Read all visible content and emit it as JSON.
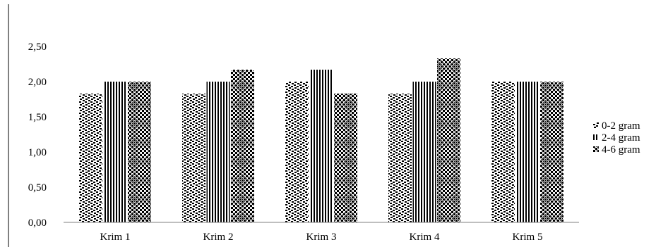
{
  "chart_data": {
    "type": "bar",
    "categories": [
      "Krim 1",
      "Krim 2",
      "Krim 3",
      "Krim 4",
      "Krim 5"
    ],
    "series": [
      {
        "name": "0-2 gram",
        "values": [
          1.83,
          1.83,
          2.0,
          1.83,
          2.0
        ]
      },
      {
        "name": "2-4 gram",
        "values": [
          2.0,
          2.0,
          2.17,
          2.0,
          2.0
        ]
      },
      {
        "name": "4-6 gram",
        "values": [
          2.0,
          2.17,
          1.83,
          2.33,
          2.0
        ]
      }
    ],
    "y_ticks": [
      "0,00",
      "0,50",
      "1,00",
      "1,50",
      "2,00",
      "2,50"
    ],
    "ylim": [
      0,
      2.5
    ],
    "title": "",
    "xlabel": "",
    "ylabel": "",
    "legend_position": "right",
    "grid": false,
    "colors": {
      "bar_fill": "#000000",
      "background": "#ffffff",
      "axis": "#7f7f7f"
    }
  }
}
